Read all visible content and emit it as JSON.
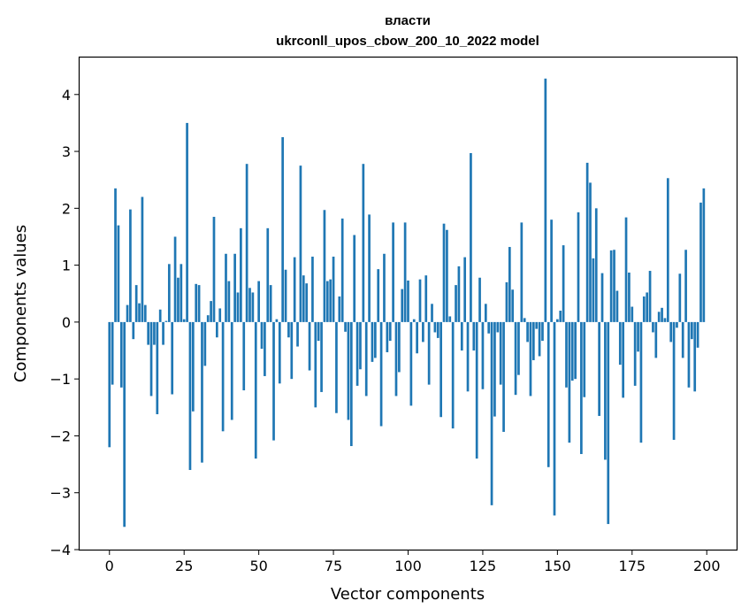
{
  "chart_data": {
    "type": "bar",
    "title": "власти",
    "subtitle": "ukrconll_upos_cbow_200_10_2022 model",
    "xlabel": "Vector components",
    "ylabel": "Components values",
    "xlim": [
      -10,
      210
    ],
    "ylim": [
      -4,
      4.65
    ],
    "xticks": [
      0,
      25,
      50,
      75,
      100,
      125,
      150,
      175,
      200
    ],
    "yticks": [
      -4,
      -3,
      -2,
      -1,
      0,
      1,
      2,
      3,
      4
    ],
    "grid": false,
    "bar_color": "#1f77b4",
    "values": [
      -2.2,
      -1.1,
      2.35,
      1.7,
      -1.15,
      -3.6,
      0.3,
      1.98,
      -0.3,
      0.65,
      0.33,
      2.2,
      0.3,
      -0.4,
      -1.3,
      -0.4,
      -1.62,
      0.22,
      -0.4,
      0.02,
      1.02,
      -1.27,
      1.5,
      0.78,
      1.02,
      0.05,
      3.5,
      -2.6,
      -1.57,
      0.67,
      0.65,
      -2.47,
      -0.77,
      0.12,
      0.37,
      1.85,
      -0.27,
      0.24,
      -1.92,
      1.2,
      0.72,
      -1.72,
      1.2,
      0.52,
      1.65,
      -1.2,
      2.78,
      0.6,
      0.52,
      -2.4,
      0.72,
      -0.47,
      -0.95,
      1.65,
      0.65,
      -2.08,
      0.05,
      -1.08,
      3.25,
      0.92,
      -0.27,
      -1.0,
      1.14,
      -0.43,
      2.75,
      0.82,
      0.68,
      -0.85,
      1.15,
      -1.5,
      -0.33,
      -1.23,
      1.97,
      0.72,
      0.75,
      1.15,
      -1.6,
      0.45,
      1.82,
      -0.17,
      -1.72,
      -2.18,
      1.53,
      -1.12,
      -0.83,
      2.78,
      -1.3,
      1.89,
      -0.7,
      -0.63,
      0.93,
      -1.83,
      1.2,
      -0.53,
      -0.33,
      1.75,
      -1.3,
      -0.88,
      0.58,
      1.75,
      0.73,
      -1.47,
      0.05,
      -0.55,
      0.75,
      -0.35,
      0.82,
      -1.1,
      0.32,
      -0.18,
      -0.28,
      -1.67,
      1.73,
      1.62,
      0.1,
      -1.87,
      0.65,
      0.98,
      -0.5,
      1.14,
      -1.22,
      2.97,
      -0.5,
      -2.4,
      0.78,
      -1.18,
      0.32,
      -0.2,
      -3.22,
      -1.66,
      -0.18,
      -1.1,
      -1.93,
      0.7,
      1.32,
      0.57,
      -1.28,
      -0.93,
      1.75,
      0.07,
      -0.35,
      -1.3,
      -0.67,
      -0.12,
      -0.6,
      -0.33,
      4.28,
      -2.55,
      1.8,
      -3.4,
      0.05,
      0.2,
      1.35,
      -1.15,
      -2.12,
      -1.03,
      -1.0,
      1.93,
      -2.32,
      -1.32,
      2.8,
      2.45,
      1.12,
      2.0,
      -1.65,
      0.86,
      -2.42,
      -3.55,
      1.26,
      1.27,
      0.55,
      -0.75,
      -1.33,
      1.84,
      0.87,
      0.27,
      -1.12,
      -0.52,
      -2.12,
      0.45,
      0.52,
      0.9,
      -0.18,
      -0.63,
      0.18,
      0.25,
      0.07,
      2.53,
      -0.35,
      -2.07,
      -0.1,
      0.85,
      -0.63,
      1.27,
      -1.15,
      -0.3,
      -1.22,
      -0.45,
      2.1,
      2.35
    ]
  }
}
